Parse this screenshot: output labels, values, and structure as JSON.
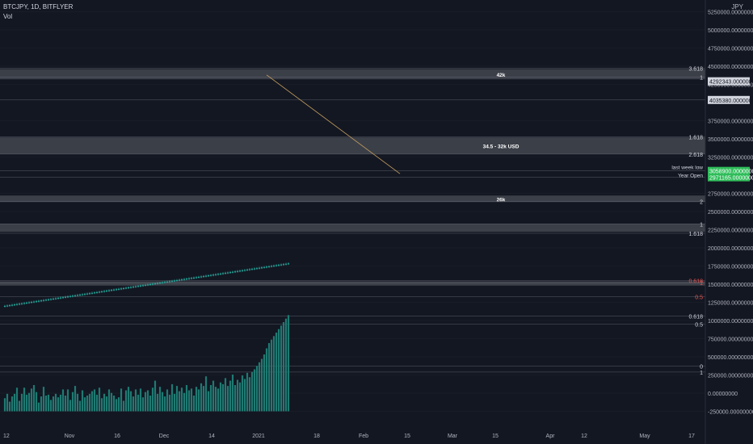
{
  "header": {
    "symbol": "BTCJPY, 1D, BITFLYER",
    "indicator": "Vol"
  },
  "currency": "JPY",
  "colors": {
    "background": "#131722",
    "up": "#26a69a",
    "down": "#ef5350",
    "vol_up": "#1f7a72",
    "vol_down": "#9b2f2f",
    "grid": "#2a2e39",
    "axis_text": "#b2b5be",
    "zone_fill": "#4a4d55",
    "trend": "#c8a060",
    "green_label": "#2fbd5a"
  },
  "chart_data": {
    "type": "candlestick",
    "x_tick_labels": [
      "12",
      "Nov",
      "16",
      "Dec",
      "14",
      "2021",
      "18",
      "Feb",
      "15",
      "Mar",
      "15",
      "Apr",
      "12",
      "May",
      "17"
    ],
    "y_tick_labels": [
      "5250000.00000000",
      "5000000.00000000",
      "4750000.00000000",
      "4500000.00000000",
      "4250000.00000000",
      "3750000.00000000",
      "3500000.00000000",
      "3250000.00000000",
      "2750000.00000000",
      "2500000.00000000",
      "2250000.00000000",
      "2000000.00000000",
      "1750000.00000000",
      "1500000.00000000",
      "1250000.00000000",
      "1000000.00000000",
      "750000.00000000",
      "500000.00000000",
      "250000.00000000",
      "0.00000000",
      "-250000.00000000"
    ],
    "y_ticks": [
      5250000,
      5000000,
      4750000,
      4500000,
      4250000,
      3750000,
      3500000,
      3250000,
      2750000,
      2500000,
      2250000,
      2000000,
      1750000,
      1500000,
      1250000,
      1000000,
      750000,
      500000,
      250000,
      0,
      -250000
    ],
    "ylim": [
      -300000,
      5400000
    ],
    "zones": [
      {
        "label": "42k",
        "top": 4460000,
        "bottom": 4320000
      },
      {
        "label": "34.5 - 32k USD",
        "top": 3520000,
        "bottom": 3290000
      },
      {
        "label": "26k",
        "top": 2720000,
        "bottom": 2630000
      },
      {
        "label": "",
        "top": 2330000,
        "bottom": 2220000
      },
      {
        "label": "",
        "top": 1540000,
        "bottom": 1480000
      }
    ],
    "level_lines": [
      {
        "label": "3.618",
        "value": 4470000
      },
      {
        "label": "1",
        "value": 4350000
      },
      {
        "label": "",
        "value": 4035380
      },
      {
        "label": "1.618",
        "value": 3530000
      },
      {
        "label": "2.618",
        "value": 3290000
      },
      {
        "label": "",
        "value": 3060000
      },
      {
        "label": "",
        "value": 2971165
      },
      {
        "label": "2",
        "value": 2640000
      },
      {
        "label": "1",
        "value": 2330000
      },
      {
        "label": "1.618",
        "value": 2200000
      },
      {
        "label": "0.618",
        "value": 1550000
      },
      {
        "label": "1",
        "value": 1520000
      },
      {
        "label": "0.5",
        "value": 1330000
      },
      {
        "label": "0.618",
        "value": 1060000
      },
      {
        "label": "0.5",
        "value": 950000
      },
      {
        "label": "0",
        "value": 370000
      },
      {
        "label": "1",
        "value": 290000
      }
    ],
    "price_labels": [
      {
        "text": "4292343.00000000",
        "value": 4292343,
        "style": "light"
      },
      {
        "text": "4035380.00000000",
        "value": 4035380,
        "style": "light"
      },
      {
        "text": "3058900.00000000",
        "value": 3058900,
        "style": "green"
      },
      {
        "text": "2971165.00000000",
        "value": 2971165,
        "style": "green"
      }
    ],
    "annotations": [
      {
        "text": "last week low",
        "value": 3060000
      },
      {
        "text": "Year Open",
        "value": 2971165
      }
    ],
    "trendline": {
      "from_index": 108,
      "from_value": 4380000,
      "to_index": 163,
      "to_value": 3020000
    },
    "candles": [
      {
        "o": 1195000,
        "h": 1214000,
        "l": 1180000,
        "c": 1200000,
        "v": 150000
      },
      {
        "o": 1200000,
        "h": 1219000,
        "l": 1185000,
        "c": 1205000,
        "v": 200000
      },
      {
        "o": 1205000,
        "h": 1224000,
        "l": 1190000,
        "c": 1210000,
        "v": 110000
      },
      {
        "o": 1210000,
        "h": 1229000,
        "l": 1195000,
        "c": 1215000,
        "v": 170000
      },
      {
        "o": 1215000,
        "h": 1234000,
        "l": 1200000,
        "c": 1220000,
        "v": 200000
      },
      {
        "o": 1220000,
        "h": 1239000,
        "l": 1205000,
        "c": 1225000,
        "v": 270000
      },
      {
        "o": 1225000,
        "h": 1244000,
        "l": 1210000,
        "c": 1230000,
        "v": 120000
      },
      {
        "o": 1230000,
        "h": 1249000,
        "l": 1215000,
        "c": 1235000,
        "v": 200000
      },
      {
        "o": 1235000,
        "h": 1254000,
        "l": 1220000,
        "c": 1240000,
        "v": 270000
      },
      {
        "o": 1240000,
        "h": 1259000,
        "l": 1225000,
        "c": 1245000,
        "v": 190000
      },
      {
        "o": 1245000,
        "h": 1264000,
        "l": 1230000,
        "c": 1250000,
        "v": 210000
      },
      {
        "o": 1250000,
        "h": 1269000,
        "l": 1235000,
        "c": 1255000,
        "v": 260000
      },
      {
        "o": 1255000,
        "h": 1274000,
        "l": 1240000,
        "c": 1260000,
        "v": 300000
      },
      {
        "o": 1260000,
        "h": 1279000,
        "l": 1245000,
        "c": 1265000,
        "v": 220000
      },
      {
        "o": 1265000,
        "h": 1284000,
        "l": 1250000,
        "c": 1270000,
        "v": 100000
      },
      {
        "o": 1270000,
        "h": 1289000,
        "l": 1255000,
        "c": 1275000,
        "v": 170000
      },
      {
        "o": 1275000,
        "h": 1294000,
        "l": 1260000,
        "c": 1280000,
        "v": 280000
      },
      {
        "o": 1280000,
        "h": 1299000,
        "l": 1265000,
        "c": 1285000,
        "v": 180000
      },
      {
        "o": 1285000,
        "h": 1304000,
        "l": 1270000,
        "c": 1290000,
        "v": 190000
      },
      {
        "o": 1290000,
        "h": 1309000,
        "l": 1275000,
        "c": 1295000,
        "v": 130000
      },
      {
        "o": 1295000,
        "h": 1314000,
        "l": 1280000,
        "c": 1300000,
        "v": 170000
      },
      {
        "o": 1300000,
        "h": 1319000,
        "l": 1285000,
        "c": 1305000,
        "v": 200000
      },
      {
        "o": 1305000,
        "h": 1324000,
        "l": 1290000,
        "c": 1310000,
        "v": 160000
      },
      {
        "o": 1310000,
        "h": 1329000,
        "l": 1295000,
        "c": 1315000,
        "v": 190000
      },
      {
        "o": 1315000,
        "h": 1334000,
        "l": 1300000,
        "c": 1320000,
        "v": 250000
      },
      {
        "o": 1320000,
        "h": 1339000,
        "l": 1305000,
        "c": 1325000,
        "v": 180000
      },
      {
        "o": 1325000,
        "h": 1344000,
        "l": 1310000,
        "c": 1330000,
        "v": 250000
      },
      {
        "o": 1330000,
        "h": 1349000,
        "l": 1315000,
        "c": 1335000,
        "v": 130000
      },
      {
        "o": 1335000,
        "h": 1354000,
        "l": 1320000,
        "c": 1340000,
        "v": 220000
      },
      {
        "o": 1340000,
        "h": 1359000,
        "l": 1325000,
        "c": 1345000,
        "v": 290000
      },
      {
        "o": 1345000,
        "h": 1364000,
        "l": 1330000,
        "c": 1350000,
        "v": 200000
      },
      {
        "o": 1350000,
        "h": 1369000,
        "l": 1335000,
        "c": 1355000,
        "v": 120000
      },
      {
        "o": 1355000,
        "h": 1374000,
        "l": 1340000,
        "c": 1360000,
        "v": 240000
      },
      {
        "o": 1360000,
        "h": 1379000,
        "l": 1345000,
        "c": 1365000,
        "v": 160000
      },
      {
        "o": 1365000,
        "h": 1384000,
        "l": 1350000,
        "c": 1370000,
        "v": 180000
      },
      {
        "o": 1370000,
        "h": 1389000,
        "l": 1355000,
        "c": 1375000,
        "v": 200000
      },
      {
        "o": 1375000,
        "h": 1394000,
        "l": 1360000,
        "c": 1380000,
        "v": 230000
      },
      {
        "o": 1380000,
        "h": 1399000,
        "l": 1365000,
        "c": 1385000,
        "v": 250000
      },
      {
        "o": 1385000,
        "h": 1404000,
        "l": 1370000,
        "c": 1390000,
        "v": 190000
      },
      {
        "o": 1390000,
        "h": 1409000,
        "l": 1375000,
        "c": 1395000,
        "v": 270000
      },
      {
        "o": 1395000,
        "h": 1414000,
        "l": 1380000,
        "c": 1400000,
        "v": 150000
      },
      {
        "o": 1400000,
        "h": 1419000,
        "l": 1385000,
        "c": 1405000,
        "v": 200000
      },
      {
        "o": 1405000,
        "h": 1424000,
        "l": 1390000,
        "c": 1410000,
        "v": 170000
      },
      {
        "o": 1410000,
        "h": 1429000,
        "l": 1395000,
        "c": 1415000,
        "v": 250000
      },
      {
        "o": 1415000,
        "h": 1434000,
        "l": 1400000,
        "c": 1420000,
        "v": 210000
      },
      {
        "o": 1420000,
        "h": 1439000,
        "l": 1405000,
        "c": 1425000,
        "v": 180000
      },
      {
        "o": 1425000,
        "h": 1444000,
        "l": 1410000,
        "c": 1430000,
        "v": 140000
      },
      {
        "o": 1430000,
        "h": 1449000,
        "l": 1415000,
        "c": 1435000,
        "v": 160000
      },
      {
        "o": 1435000,
        "h": 1454000,
        "l": 1420000,
        "c": 1440000,
        "v": 260000
      },
      {
        "o": 1440000,
        "h": 1459000,
        "l": 1425000,
        "c": 1445000,
        "v": 120000
      },
      {
        "o": 1445000,
        "h": 1464000,
        "l": 1430000,
        "c": 1450000,
        "v": 240000
      },
      {
        "o": 1450000,
        "h": 1469000,
        "l": 1435000,
        "c": 1455000,
        "v": 280000
      },
      {
        "o": 1455000,
        "h": 1474000,
        "l": 1440000,
        "c": 1460000,
        "v": 230000
      },
      {
        "o": 1460000,
        "h": 1479000,
        "l": 1445000,
        "c": 1465000,
        "v": 170000
      },
      {
        "o": 1465000,
        "h": 1484000,
        "l": 1450000,
        "c": 1470000,
        "v": 250000
      },
      {
        "o": 1470000,
        "h": 1489000,
        "l": 1455000,
        "c": 1475000,
        "v": 190000
      },
      {
        "o": 1475000,
        "h": 1494000,
        "l": 1460000,
        "c": 1480000,
        "v": 260000
      },
      {
        "o": 1480000,
        "h": 1499000,
        "l": 1465000,
        "c": 1485000,
        "v": 160000
      },
      {
        "o": 1485000,
        "h": 1504000,
        "l": 1470000,
        "c": 1490000,
        "v": 220000
      },
      {
        "o": 1490000,
        "h": 1509000,
        "l": 1475000,
        "c": 1495000,
        "v": 240000
      },
      {
        "o": 1495000,
        "h": 1514000,
        "l": 1480000,
        "c": 1500000,
        "v": 180000
      },
      {
        "o": 1500000,
        "h": 1519000,
        "l": 1485000,
        "c": 1505000,
        "v": 270000
      },
      {
        "o": 1505000,
        "h": 1524000,
        "l": 1490000,
        "c": 1510000,
        "v": 350000
      },
      {
        "o": 1510000,
        "h": 1529000,
        "l": 1495000,
        "c": 1515000,
        "v": 200000
      },
      {
        "o": 1515000,
        "h": 1534000,
        "l": 1500000,
        "c": 1520000,
        "v": 280000
      },
      {
        "o": 1520000,
        "h": 1539000,
        "l": 1505000,
        "c": 1525000,
        "v": 220000
      },
      {
        "o": 1525000,
        "h": 1544000,
        "l": 1510000,
        "c": 1530000,
        "v": 170000
      },
      {
        "o": 1530000,
        "h": 1549000,
        "l": 1515000,
        "c": 1535000,
        "v": 250000
      },
      {
        "o": 1535000,
        "h": 1554000,
        "l": 1520000,
        "c": 1540000,
        "v": 190000
      },
      {
        "o": 1540000,
        "h": 1559000,
        "l": 1525000,
        "c": 1545000,
        "v": 310000
      },
      {
        "o": 1545000,
        "h": 1564000,
        "l": 1530000,
        "c": 1550000,
        "v": 200000
      },
      {
        "o": 1550000,
        "h": 1569000,
        "l": 1535000,
        "c": 1555000,
        "v": 290000
      },
      {
        "o": 1555000,
        "h": 1574000,
        "l": 1540000,
        "c": 1560000,
        "v": 230000
      },
      {
        "o": 1560000,
        "h": 1579000,
        "l": 1545000,
        "c": 1565000,
        "v": 270000
      },
      {
        "o": 1565000,
        "h": 1584000,
        "l": 1550000,
        "c": 1570000,
        "v": 210000
      },
      {
        "o": 1570000,
        "h": 1589000,
        "l": 1555000,
        "c": 1575000,
        "v": 300000
      },
      {
        "o": 1575000,
        "h": 1594000,
        "l": 1560000,
        "c": 1580000,
        "v": 240000
      },
      {
        "o": 1580000,
        "h": 1599000,
        "l": 1565000,
        "c": 1585000,
        "v": 260000
      },
      {
        "o": 1585000,
        "h": 1604000,
        "l": 1570000,
        "c": 1590000,
        "v": 180000
      },
      {
        "o": 1590000,
        "h": 1609000,
        "l": 1575000,
        "c": 1595000,
        "v": 280000
      },
      {
        "o": 1595000,
        "h": 1614000,
        "l": 1580000,
        "c": 1600000,
        "v": 250000
      },
      {
        "o": 1600000,
        "h": 1619000,
        "l": 1585000,
        "c": 1605000,
        "v": 320000
      },
      {
        "o": 1605000,
        "h": 1624000,
        "l": 1590000,
        "c": 1610000,
        "v": 290000
      },
      {
        "o": 1610000,
        "h": 1629000,
        "l": 1595000,
        "c": 1615000,
        "v": 400000
      },
      {
        "o": 1615000,
        "h": 1634000,
        "l": 1600000,
        "c": 1620000,
        "v": 230000
      },
      {
        "o": 1620000,
        "h": 1639000,
        "l": 1605000,
        "c": 1625000,
        "v": 300000
      },
      {
        "o": 1625000,
        "h": 1644000,
        "l": 1610000,
        "c": 1630000,
        "v": 350000
      },
      {
        "o": 1630000,
        "h": 1649000,
        "l": 1615000,
        "c": 1635000,
        "v": 280000
      },
      {
        "o": 1635000,
        "h": 1654000,
        "l": 1620000,
        "c": 1640000,
        "v": 260000
      },
      {
        "o": 1640000,
        "h": 1659000,
        "l": 1625000,
        "c": 1645000,
        "v": 330000
      },
      {
        "o": 1645000,
        "h": 1664000,
        "l": 1630000,
        "c": 1650000,
        "v": 310000
      },
      {
        "o": 1650000,
        "h": 1669000,
        "l": 1635000,
        "c": 1655000,
        "v": 380000
      },
      {
        "o": 1655000,
        "h": 1674000,
        "l": 1640000,
        "c": 1660000,
        "v": 290000
      },
      {
        "o": 1660000,
        "h": 1679000,
        "l": 1645000,
        "c": 1665000,
        "v": 350000
      },
      {
        "o": 1665000,
        "h": 1684000,
        "l": 1650000,
        "c": 1670000,
        "v": 420000
      },
      {
        "o": 1670000,
        "h": 1689000,
        "l": 1655000,
        "c": 1675000,
        "v": 300000
      },
      {
        "o": 1675000,
        "h": 1694000,
        "l": 1660000,
        "c": 1680000,
        "v": 360000
      },
      {
        "o": 1680000,
        "h": 1699000,
        "l": 1665000,
        "c": 1685000,
        "v": 330000
      },
      {
        "o": 1685000,
        "h": 1704000,
        "l": 1670000,
        "c": 1690000,
        "v": 410000
      },
      {
        "o": 1690000,
        "h": 1709000,
        "l": 1675000,
        "c": 1695000,
        "v": 370000
      },
      {
        "o": 1695000,
        "h": 1714000,
        "l": 1680000,
        "c": 1700000,
        "v": 440000
      },
      {
        "o": 1700000,
        "h": 1719000,
        "l": 1685000,
        "c": 1705000,
        "v": 390000
      },
      {
        "o": 1705000,
        "h": 1724000,
        "l": 1690000,
        "c": 1710000,
        "v": 450000
      },
      {
        "o": 1710000,
        "h": 1729000,
        "l": 1695000,
        "c": 1715000,
        "v": 480000
      },
      {
        "o": 1715000,
        "h": 1734000,
        "l": 1700000,
        "c": 1720000,
        "v": 520000
      },
      {
        "o": 1720000,
        "h": 1739000,
        "l": 1705000,
        "c": 1725000,
        "v": 560000
      },
      {
        "o": 1725000,
        "h": 1744000,
        "l": 1710000,
        "c": 1730000,
        "v": 600000
      },
      {
        "o": 1730000,
        "h": 1749000,
        "l": 1715000,
        "c": 1735000,
        "v": 650000
      },
      {
        "o": 1735000,
        "h": 1754000,
        "l": 1720000,
        "c": 1740000,
        "v": 720000
      },
      {
        "o": 1740000,
        "h": 1759000,
        "l": 1725000,
        "c": 1745000,
        "v": 780000
      },
      {
        "o": 1745000,
        "h": 1764000,
        "l": 1730000,
        "c": 1750000,
        "v": 820000
      },
      {
        "o": 1750000,
        "h": 1769000,
        "l": 1735000,
        "c": 1755000,
        "v": 860000
      },
      {
        "o": 1755000,
        "h": 1774000,
        "l": 1740000,
        "c": 1760000,
        "v": 900000
      },
      {
        "o": 1760000,
        "h": 1779000,
        "l": 1745000,
        "c": 1765000,
        "v": 940000
      },
      {
        "o": 1765000,
        "h": 1784000,
        "l": 1750000,
        "c": 1770000,
        "v": 980000
      },
      {
        "o": 1770000,
        "h": 1789000,
        "l": 1755000,
        "c": 1775000,
        "v": 1020000
      },
      {
        "o": 1775000,
        "h": 1794000,
        "l": 1760000,
        "c": 1780000,
        "v": 1060000
      },
      {
        "o": 1780000,
        "h": 1799000,
        "l": 1765000,
        "c": 1785000,
        "v": 1100000
      }
    ]
  }
}
